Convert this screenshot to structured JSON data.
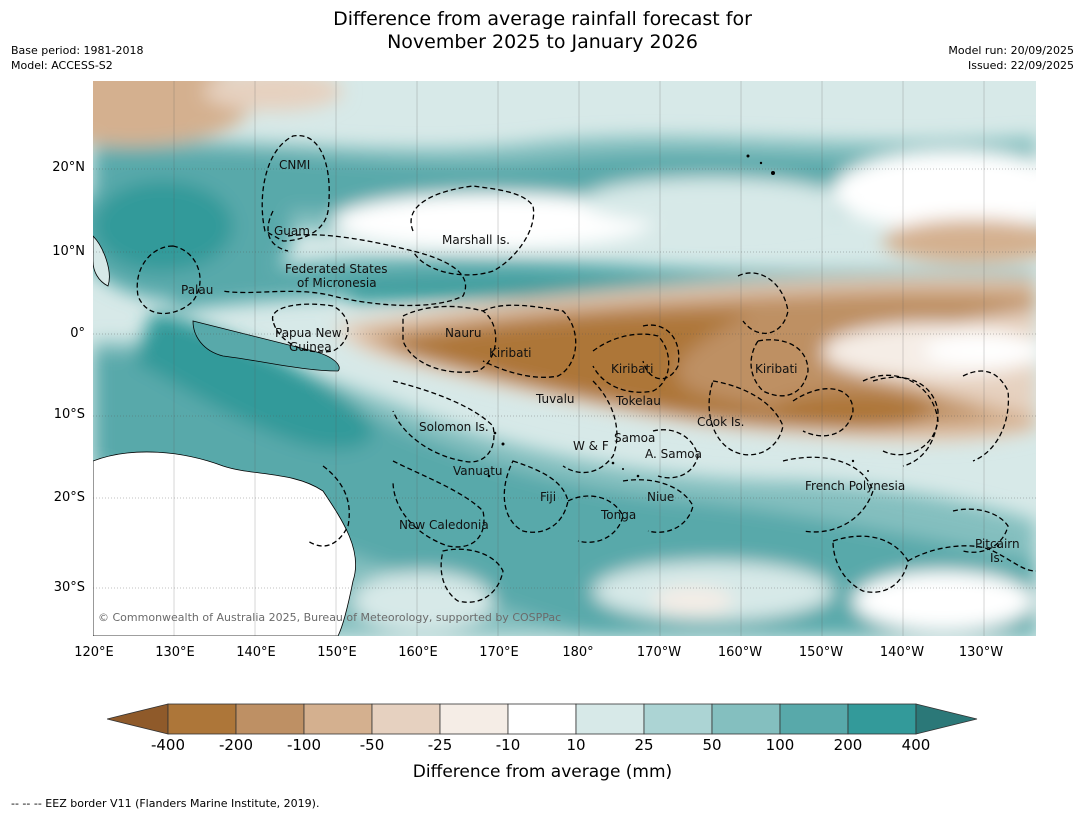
{
  "title_line1": "Difference from average rainfall forecast for",
  "title_line2": "November 2025 to January 2026",
  "meta_left": {
    "base_period": "Base period: 1981-2018",
    "model": "Model: ACCESS-S2"
  },
  "meta_right": {
    "model_run": "Model run: 20/09/2025",
    "issued": "Issued: 22/09/2025"
  },
  "copyright": "© Commonwealth of Australia 2025, Bureau of Meteorology, supported by COSPPac",
  "lat_ticks": [
    "20°N",
    "10°N",
    "0°",
    "10°S",
    "20°S",
    "30°S"
  ],
  "lon_ticks": [
    "120°E",
    "130°E",
    "140°E",
    "150°E",
    "160°E",
    "170°E",
    "180°",
    "170°W",
    "160°W",
    "150°W",
    "140°W",
    "130°W"
  ],
  "region_labels": {
    "cnmi": "CNMI",
    "guam": "Guam",
    "marshall": "Marshall Is.",
    "fsm_1": "Federated States",
    "fsm_2": "of Micronesia",
    "palau": "Palau",
    "png_1": "Papua New",
    "png_2": "Guinea",
    "nauru": "Nauru",
    "kiribati_w": "Kiribati",
    "kiribati_c": "Kiribati",
    "kiribati_e": "Kiribati",
    "tuvalu": "Tuvalu",
    "tokelau": "Tokelau",
    "cook": "Cook Is.",
    "solomon": "Solomon Is.",
    "wf": "W & F",
    "samoa": "Samoa",
    "asamoa": "A. Samoa",
    "vanuatu": "Vanuatu",
    "fiji": "Fiji",
    "niue": "Niue",
    "tonga": "Tonga",
    "frpoly": "French Polynesia",
    "newcal": "New Caledonia",
    "pitcairn_1": "Pitcairn",
    "pitcairn_2": "Is."
  },
  "colorbar": {
    "title": "Difference from average (mm)",
    "labels": [
      "-400",
      "-200",
      "-100",
      "-50",
      "-25",
      "-10",
      "10",
      "25",
      "50",
      "100",
      "200",
      "400"
    ],
    "colors": [
      "#8f5a2a",
      "#ad7639",
      "#be9064",
      "#d4b08f",
      "#e6d1c0",
      "#f5ede6",
      "#ffffff",
      "#d7e9e8",
      "#acd4d4",
      "#84bfbf",
      "#58a9aa",
      "#339a9a",
      "#2b7878"
    ]
  },
  "footer": "--  --  -- EEZ border V11 (Flanders Marine Institute, 2019)."
}
